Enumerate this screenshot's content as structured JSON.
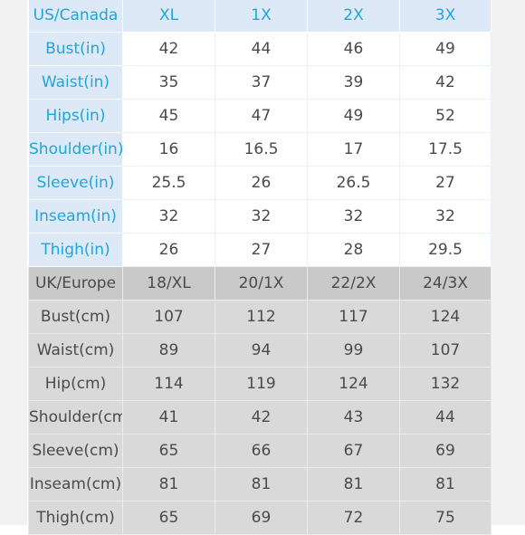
{
  "us_section": {
    "header": [
      "US/Canada",
      "XL",
      "1X",
      "2X",
      "3X"
    ],
    "rows": [
      {
        "label": "Bust(in)",
        "values": [
          "42",
          "44",
          "46",
          "49"
        ]
      },
      {
        "label": "Waist(in)",
        "values": [
          "35",
          "37",
          "39",
          "42"
        ]
      },
      {
        "label": "Hips(in)",
        "values": [
          "45",
          "47",
          "49",
          "52"
        ]
      },
      {
        "label": "Shoulder(in)",
        "values": [
          "16",
          "16.5",
          "17",
          "17.5"
        ]
      },
      {
        "label": "Sleeve(in)",
        "values": [
          "25.5",
          "26",
          "26.5",
          "27"
        ]
      },
      {
        "label": "Inseam(in)",
        "values": [
          "32",
          "32",
          "32",
          "32"
        ]
      },
      {
        "label": "Thigh(in)",
        "values": [
          "26",
          "27",
          "28",
          "29.5"
        ]
      }
    ]
  },
  "uk_section": {
    "header": [
      "UK/Europe",
      "18/XL",
      "20/1X",
      "22/2X",
      "24/3X"
    ],
    "rows": [
      {
        "label": "Bust(cm)",
        "values": [
          "107",
          "112",
          "117",
          "124"
        ]
      },
      {
        "label": "Waist(cm)",
        "values": [
          "89",
          "94",
          "99",
          "107"
        ]
      },
      {
        "label": "Hip(cm)",
        "values": [
          "114",
          "119",
          "124",
          "132"
        ]
      },
      {
        "label": "Shoulder(cm)",
        "values": [
          "41",
          "42",
          "43",
          "44"
        ]
      },
      {
        "label": "Sleeve(cm)",
        "values": [
          "65",
          "66",
          "67",
          "69"
        ]
      },
      {
        "label": "Inseam(cm)",
        "values": [
          "81",
          "81",
          "81",
          "81"
        ]
      },
      {
        "label": "Thigh(cm)",
        "values": [
          "65",
          "69",
          "72",
          "75"
        ]
      }
    ]
  },
  "colors": {
    "us_label_bg": "#dde9f6",
    "us_label_text": "#1fa6dc",
    "uk_bg": "#d9d9d9",
    "body_text": "#4a4a4a"
  }
}
